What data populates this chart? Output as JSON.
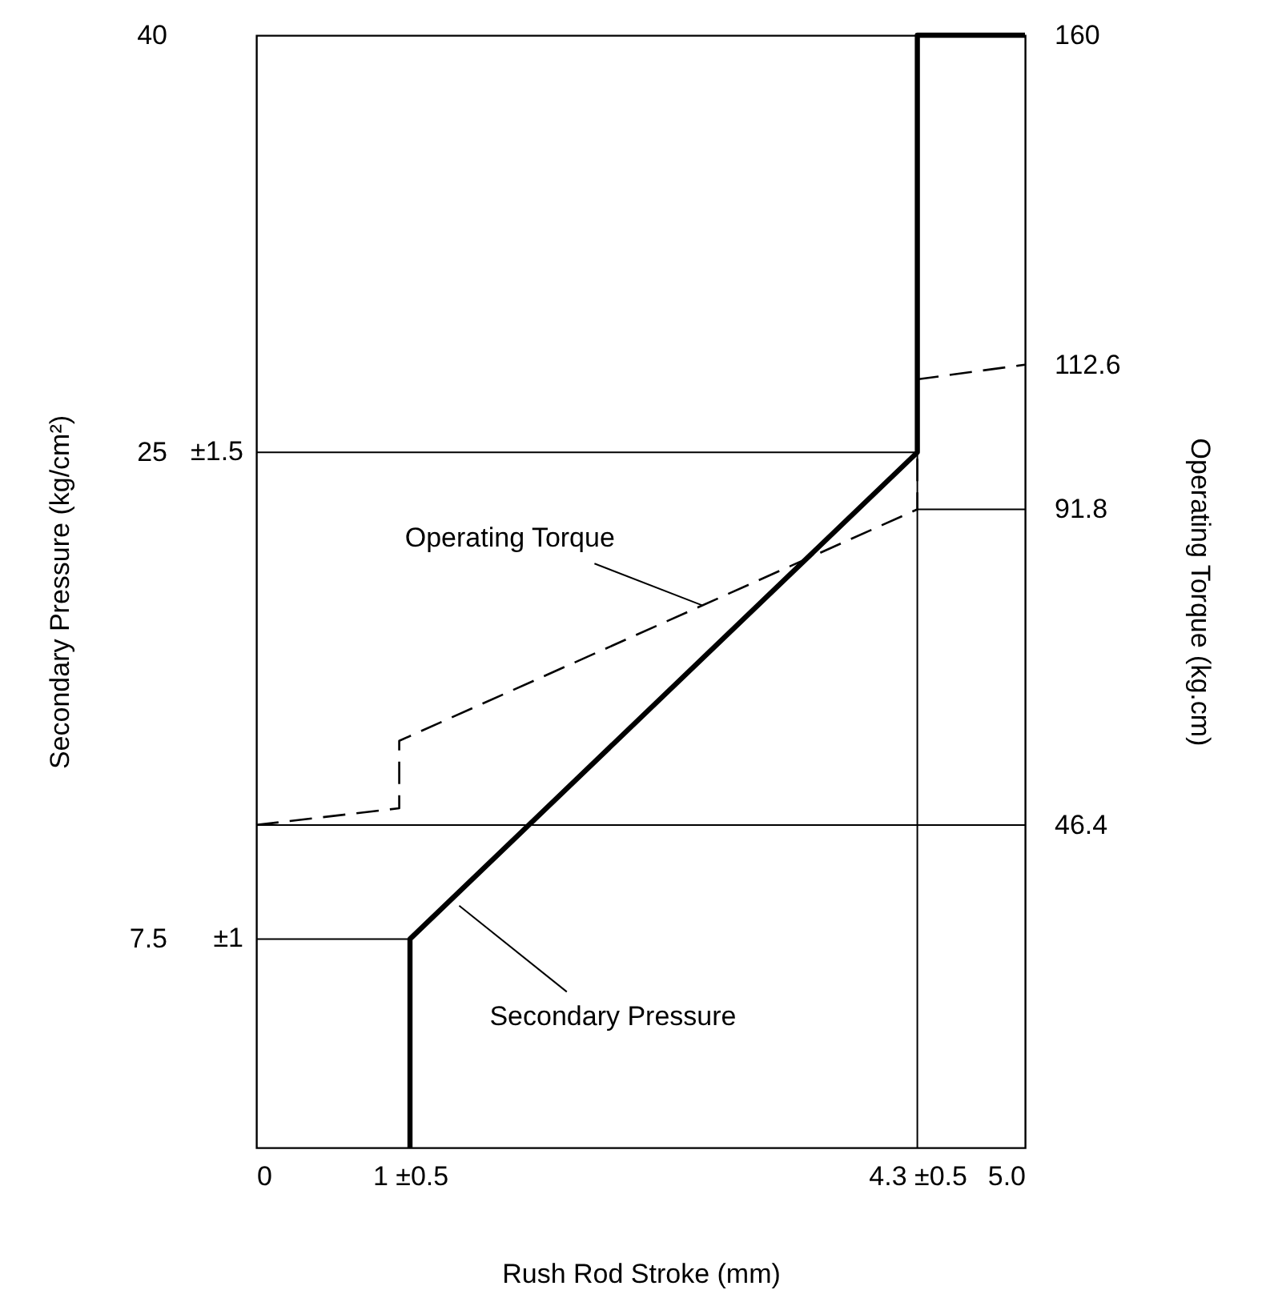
{
  "chart_data": {
    "type": "line",
    "xlabel": "Rush Rod Stroke (mm)",
    "ylabel": "Secondary Pressure (kg/cm²)",
    "y2label": "Operating Torque (kg.cm)",
    "xlim": [
      0,
      5
    ],
    "xticks": [
      0,
      {
        "value": 1,
        "label": "1 ±0.5"
      },
      {
        "value": 4.3,
        "label": "4.3 ±0.5"
      },
      {
        "value": 5,
        "label": "5.0"
      }
    ],
    "ylim": [
      0,
      40
    ],
    "yticks": [
      7.5,
      25,
      40
    ],
    "y2lim": [
      0,
      160
    ],
    "y2ticks": [
      46.4,
      91.8,
      112.6,
      160
    ],
    "series": [
      {
        "color": "#000000",
        "line_style": "solid",
        "x": [
          1,
          1,
          4.3,
          4.3,
          5
        ],
        "values": [
          0,
          7.5,
          25,
          40,
          40
        ]
      },
      {
        "color": "#000000",
        "line_style": "dashed",
        "axis": "y2",
        "x": [
          0,
          0.93,
          0.93,
          4.3,
          4.3,
          5
        ],
        "values": [
          46.4,
          48.8,
          58.5,
          91.8,
          110.5,
          112.6
        ]
      }
    ],
    "ref_lines": [
      {
        "axis": "y",
        "value": 25
      },
      {
        "axis": "y",
        "value": 7.5
      },
      {
        "axis": "y2",
        "value": 46.4
      },
      {
        "axis": "y2",
        "value": 91.8
      },
      {
        "axis": "x",
        "value": 4.3
      }
    ],
    "annotations": [
      {
        "text": "Operating Torque",
        "x": 2.9,
        "y": 19.5
      },
      {
        "text": "Secondary Pressure",
        "x": 1.32,
        "y": 8.7
      },
      {
        "text": "±1.5",
        "x": 0,
        "y": 25
      },
      {
        "text": "±1",
        "x": 0,
        "y": 7.5
      }
    ],
    "grid": false,
    "marker": "none"
  }
}
